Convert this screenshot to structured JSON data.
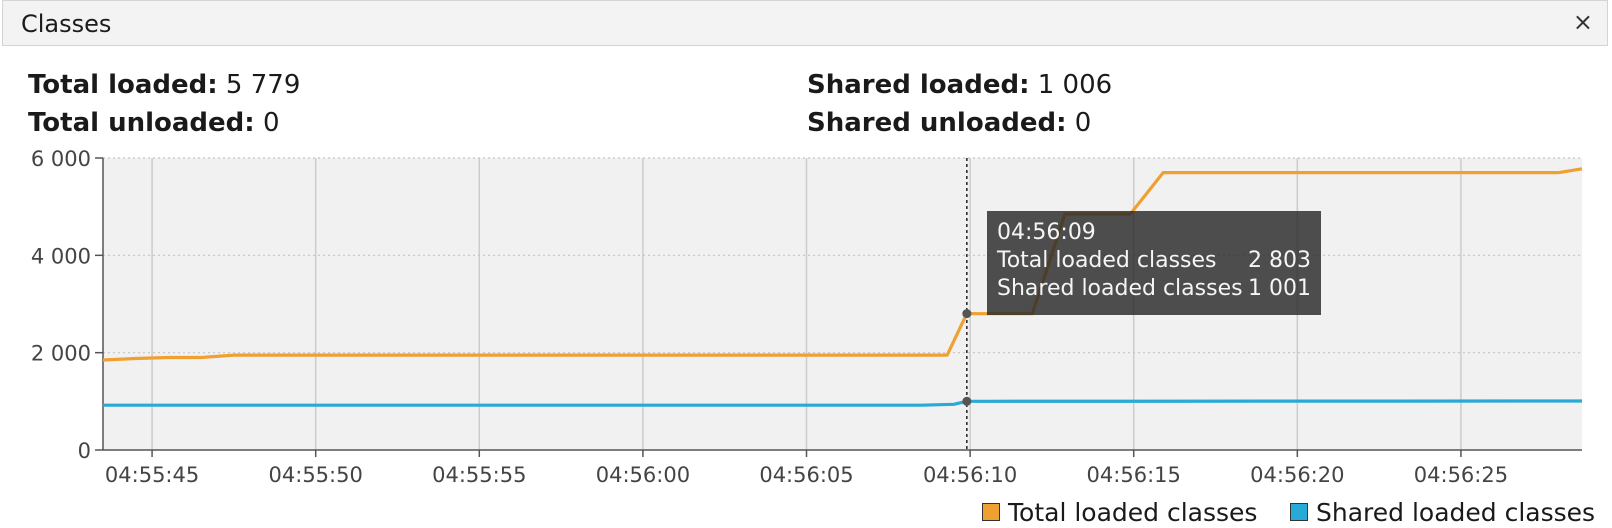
{
  "panel": {
    "title": "Classes",
    "close_label": "×"
  },
  "stats": {
    "total_loaded_label": "Total loaded:",
    "total_loaded_value": "5 779",
    "total_unloaded_label": "Total unloaded:",
    "total_unloaded_value": "0",
    "shared_loaded_label": "Shared loaded:",
    "shared_loaded_value": "1 006",
    "shared_unloaded_label": "Shared unloaded:",
    "shared_unloaded_value": "0"
  },
  "tooltip": {
    "time": "04:56:09",
    "total_label": "Total loaded classes",
    "total_value": "2 803",
    "shared_label": "Shared loaded classes",
    "shared_value": "1 001"
  },
  "legend": {
    "total_label": "Total loaded classes",
    "shared_label": "Shared loaded classes"
  },
  "colors": {
    "total": "#f0a030",
    "shared": "#29a9d6",
    "plot_bg": "#f1f1f1",
    "grid": "#cccccc"
  },
  "chart_data": {
    "type": "line",
    "x_tick_labels": [
      "04:55:45",
      "04:55:50",
      "04:55:55",
      "04:56:00",
      "04:56:05",
      "04:56:10",
      "04:56:15",
      "04:56:20",
      "04:56:25"
    ],
    "y_tick_labels": [
      "0",
      "2 000",
      "4 000",
      "6 000"
    ],
    "x_range_seconds": [
      -1.5,
      43.7
    ],
    "x_tick_seconds": [
      0,
      5,
      10,
      15,
      20,
      25,
      30,
      35,
      40
    ],
    "ylim": [
      0,
      6000
    ],
    "y_ticks": [
      0,
      2000,
      4000,
      6000
    ],
    "cursor_seconds": 24.9,
    "series": [
      {
        "name": "Total loaded classes",
        "color_key": "total",
        "x": [
          -1.5,
          -0.5,
          0.5,
          1.5,
          2.5,
          23.5,
          24.3,
          24.9,
          25.3,
          26.9,
          27.9,
          28.9,
          29.9,
          30.9,
          31.9,
          43.0,
          43.7
        ],
        "y": [
          1850,
          1880,
          1900,
          1900,
          1950,
          1950,
          1950,
          2803,
          2800,
          2800,
          4850,
          4850,
          4850,
          5700,
          5700,
          5700,
          5779
        ]
      },
      {
        "name": "Shared loaded classes",
        "color_key": "shared",
        "x": [
          -1.5,
          23.5,
          24.5,
          24.9,
          25.5,
          43.7
        ],
        "y": [
          920,
          920,
          940,
          1001,
          1001,
          1006
        ]
      }
    ]
  }
}
